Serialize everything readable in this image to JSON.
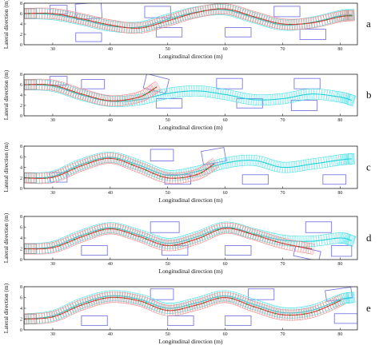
{
  "chart_data": [
    {
      "type": "line",
      "panel_label": "a",
      "xlabel": "Longitudinal direction (m)",
      "ylabel": "Lateral direction (m)",
      "xlim": [
        25,
        83
      ],
      "ylim": [
        0,
        8
      ],
      "xticks": [
        30,
        40,
        50,
        60,
        70,
        80
      ],
      "yticks": [
        0,
        2,
        4,
        6,
        8
      ],
      "obstacles": [
        {
          "x0": 29.5,
          "x1": 32.5,
          "y0": 5.9,
          "y1": 7.6
        },
        {
          "x0": 34.0,
          "x1": 38.5,
          "y0": 5.0,
          "y1": 8.0,
          "angle": -4
        },
        {
          "x0": 34.0,
          "x1": 38.5,
          "y0": 0.6,
          "y1": 2.3
        },
        {
          "x0": 46.0,
          "x1": 50.5,
          "y0": 5.2,
          "y1": 7.4
        },
        {
          "x0": 48.0,
          "x1": 52.5,
          "y0": 1.5,
          "y1": 3.3
        },
        {
          "x0": 60.0,
          "x1": 64.5,
          "y0": 1.5,
          "y1": 3.3
        },
        {
          "x0": 68.5,
          "x1": 73.0,
          "y0": 5.4,
          "y1": 7.4
        },
        {
          "x0": 73.0,
          "x1": 77.5,
          "y0": 1.0,
          "y1": 3.0
        }
      ],
      "series": [
        {
          "role": "red",
          "x": [
            25,
            30,
            35,
            40,
            45,
            50,
            55,
            60,
            65,
            70,
            75,
            80,
            82
          ],
          "y": [
            6.0,
            6.0,
            5.0,
            3.8,
            3.2,
            4.6,
            6.2,
            6.9,
            5.4,
            4.0,
            4.2,
            5.4,
            5.6
          ]
        },
        {
          "role": "cyan",
          "x": [
            25,
            30,
            35,
            40,
            45,
            50,
            55,
            60,
            65,
            70,
            75,
            80,
            82
          ],
          "y": [
            6.0,
            5.8,
            4.8,
            3.6,
            3.4,
            4.9,
            6.3,
            6.7,
            5.2,
            3.8,
            4.3,
            5.6,
            5.8
          ]
        }
      ]
    },
    {
      "type": "line",
      "panel_label": "b",
      "xlabel": "Longitudinal direction (m)",
      "ylabel": "Lateral direction (m)",
      "xlim": [
        25,
        83
      ],
      "ylim": [
        0,
        8
      ],
      "xticks": [
        30,
        40,
        50,
        60,
        70,
        80
      ],
      "yticks": [
        0,
        2,
        4,
        6,
        8
      ],
      "obstacles": [
        {
          "x0": 29.5,
          "x1": 32.5,
          "y0": 5.9,
          "y1": 7.6
        },
        {
          "x0": 35.0,
          "x1": 39.0,
          "y0": 5.2,
          "y1": 7.0
        },
        {
          "x0": 46.0,
          "x1": 50.0,
          "y0": 4.8,
          "y1": 7.6,
          "angle": 14
        },
        {
          "x0": 48.0,
          "x1": 52.5,
          "y0": 1.5,
          "y1": 3.3
        },
        {
          "x0": 58.5,
          "x1": 63.0,
          "y0": 5.2,
          "y1": 7.2
        },
        {
          "x0": 62.0,
          "x1": 66.5,
          "y0": 1.5,
          "y1": 3.3
        },
        {
          "x0": 72.0,
          "x1": 76.5,
          "y0": 5.2,
          "y1": 7.2
        },
        {
          "x0": 71.5,
          "x1": 76.0,
          "y0": 1.0,
          "y1": 3.0
        }
      ],
      "series": [
        {
          "role": "red",
          "x": [
            25,
            30,
            35,
            40,
            45,
            48
          ],
          "y": [
            6.0,
            5.9,
            4.2,
            2.9,
            3.6,
            5.5
          ]
        },
        {
          "role": "cyan",
          "x": [
            25,
            30,
            35,
            40,
            45,
            50,
            55,
            60,
            65,
            70,
            75,
            80,
            82
          ],
          "y": [
            6.0,
            5.7,
            4.0,
            2.8,
            3.1,
            4.3,
            4.8,
            4.1,
            3.1,
            3.3,
            4.2,
            3.6,
            3.0
          ]
        }
      ]
    },
    {
      "type": "line",
      "panel_label": "c",
      "xlabel": "Longitudinal direction (m)",
      "ylabel": "Lateral direction (m)",
      "xlim": [
        25,
        83
      ],
      "ylim": [
        0,
        8
      ],
      "xticks": [
        30,
        40,
        50,
        60,
        70,
        80
      ],
      "yticks": [
        0,
        2,
        4,
        6,
        8
      ],
      "obstacles": [
        {
          "x0": 29.5,
          "x1": 32.5,
          "y0": 1.2,
          "y1": 3.0
        },
        {
          "x0": 47.0,
          "x1": 51.0,
          "y0": 5.2,
          "y1": 7.4
        },
        {
          "x0": 49.5,
          "x1": 54.0,
          "y0": 0.8,
          "y1": 2.6
        },
        {
          "x0": 56.0,
          "x1": 60.0,
          "y0": 4.8,
          "y1": 7.4,
          "angle": -10
        },
        {
          "x0": 63.0,
          "x1": 67.5,
          "y0": 0.8,
          "y1": 2.6
        },
        {
          "x0": 77.0,
          "x1": 81.0,
          "y0": 0.8,
          "y1": 2.6
        }
      ],
      "series": [
        {
          "role": "red",
          "x": [
            25,
            30,
            35,
            40,
            45,
            50,
            55,
            58
          ],
          "y": [
            2.0,
            2.1,
            4.3,
            5.7,
            4.0,
            2.0,
            2.6,
            4.6
          ]
        },
        {
          "role": "cyan",
          "x": [
            25,
            30,
            35,
            40,
            45,
            50,
            55,
            60,
            65,
            70,
            75,
            80,
            82
          ],
          "y": [
            2.0,
            2.3,
            4.6,
            5.9,
            4.4,
            2.5,
            3.2,
            4.8,
            5.3,
            4.0,
            4.6,
            5.4,
            5.6
          ]
        }
      ]
    },
    {
      "type": "line",
      "panel_label": "d",
      "xlabel": "Longitudinal direction (m)",
      "ylabel": "Lateral direction (m)",
      "xlim": [
        25,
        83
      ],
      "ylim": [
        0,
        8
      ],
      "xticks": [
        30,
        40,
        50,
        60,
        70,
        80
      ],
      "yticks": [
        0,
        2,
        4,
        6,
        8
      ],
      "obstacles": [
        {
          "x0": 35.0,
          "x1": 39.5,
          "y0": 0.8,
          "y1": 2.6
        },
        {
          "x0": 47.0,
          "x1": 52.0,
          "y0": 5.0,
          "y1": 7.0
        },
        {
          "x0": 49.0,
          "x1": 53.5,
          "y0": 0.8,
          "y1": 2.6
        },
        {
          "x0": 60.0,
          "x1": 64.5,
          "y0": 0.8,
          "y1": 2.6
        },
        {
          "x0": 74.0,
          "x1": 78.5,
          "y0": 5.0,
          "y1": 7.0
        },
        {
          "x0": 72.0,
          "x1": 76.5,
          "y0": 0.2,
          "y1": 2.0,
          "angle": 12
        },
        {
          "x0": 78.5,
          "x1": 82.0,
          "y0": 0.6,
          "y1": 2.6
        }
      ],
      "series": [
        {
          "role": "red",
          "x": [
            25,
            30,
            35,
            40,
            45,
            50,
            55,
            60,
            65,
            70,
            75
          ],
          "y": [
            2.0,
            2.2,
            4.2,
            5.7,
            4.3,
            2.6,
            3.8,
            5.8,
            4.6,
            3.0,
            2.0
          ]
        },
        {
          "role": "cyan",
          "x": [
            25,
            30,
            35,
            40,
            45,
            50,
            55,
            60,
            65,
            70,
            75,
            80,
            82
          ],
          "y": [
            2.0,
            2.4,
            4.5,
            5.9,
            4.6,
            3.0,
            4.2,
            6.0,
            4.8,
            3.6,
            3.4,
            4.0,
            3.5
          ]
        }
      ]
    },
    {
      "type": "line",
      "panel_label": "e",
      "xlabel": "Longitudinal direction (m)",
      "ylabel": "Lateral direction (m)",
      "xlim": [
        25,
        83
      ],
      "ylim": [
        0,
        8
      ],
      "xticks": [
        30,
        40,
        50,
        60,
        70,
        80
      ],
      "yticks": [
        0,
        2,
        4,
        6,
        8
      ],
      "obstacles": [
        {
          "x0": 35.0,
          "x1": 39.5,
          "y0": 0.8,
          "y1": 2.6
        },
        {
          "x0": 47.0,
          "x1": 51.0,
          "y0": 5.6,
          "y1": 7.6
        },
        {
          "x0": 50.0,
          "x1": 54.5,
          "y0": 0.8,
          "y1": 2.6
        },
        {
          "x0": 60.0,
          "x1": 64.5,
          "y0": 0.8,
          "y1": 2.6
        },
        {
          "x0": 64.0,
          "x1": 68.5,
          "y0": 5.6,
          "y1": 7.6
        },
        {
          "x0": 77.5,
          "x1": 82.0,
          "y0": 5.6,
          "y1": 7.6,
          "angle": -8
        },
        {
          "x0": 79.0,
          "x1": 83.0,
          "y0": 1.2,
          "y1": 3.0
        }
      ],
      "series": [
        {
          "role": "red",
          "x": [
            25,
            30,
            35,
            40,
            45,
            50,
            55,
            60,
            65,
            70,
            75,
            80
          ],
          "y": [
            2.0,
            2.4,
            4.6,
            6.0,
            5.4,
            3.6,
            4.6,
            6.0,
            4.3,
            2.8,
            3.2,
            5.4
          ]
        },
        {
          "role": "cyan",
          "x": [
            25,
            30,
            35,
            40,
            45,
            50,
            55,
            60,
            65,
            70,
            75,
            80,
            82
          ],
          "y": [
            2.0,
            2.6,
            4.9,
            6.3,
            5.7,
            4.0,
            5.0,
            6.3,
            4.7,
            3.2,
            3.6,
            5.6,
            6.0
          ]
        }
      ]
    }
  ],
  "colors": {
    "red_trajectory": "#e23a3a",
    "red_boxes": "#f08a8a",
    "cyan_trajectory": "#22d0d8",
    "cyan_boxes": "#4fe0e6",
    "green_dots": "#1a9a3a",
    "obstacle": "#7a7ae0",
    "axis": "#222222"
  }
}
